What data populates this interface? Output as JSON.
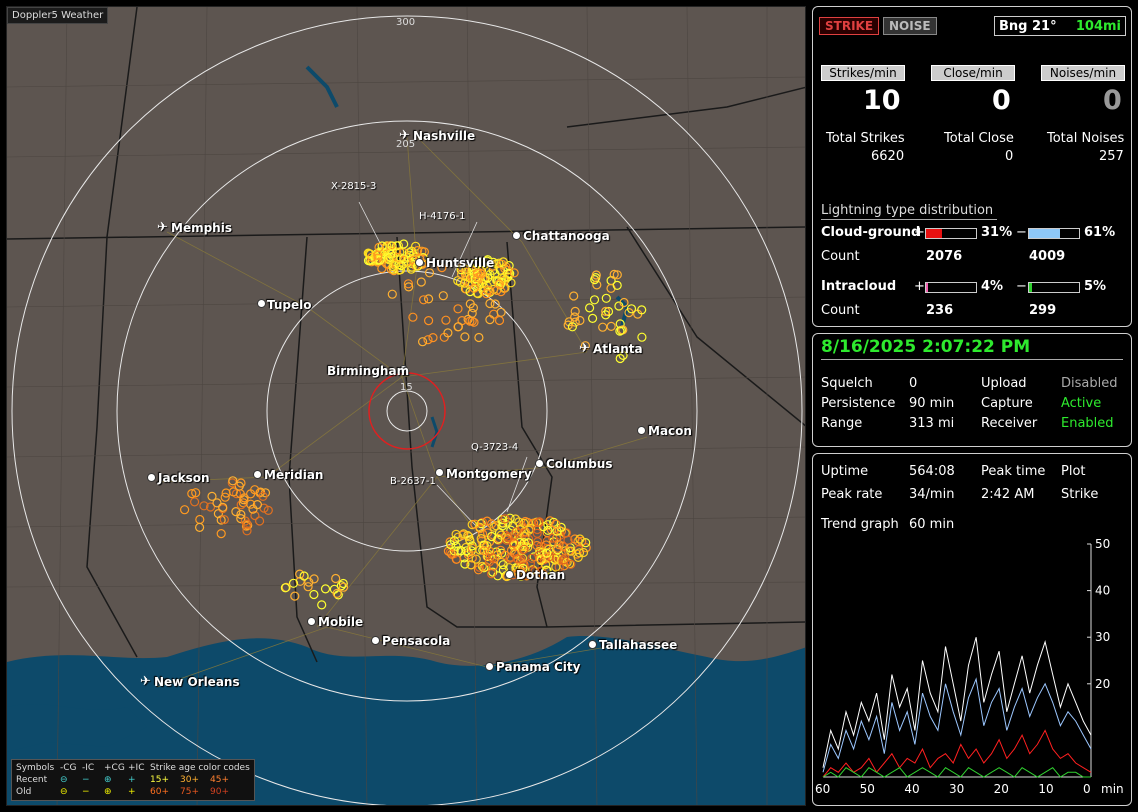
{
  "brand": "Doppler5 Weather",
  "range_labels": [
    "300",
    "205",
    "15"
  ],
  "cities": [
    {
      "name": "Nashville",
      "type": "plane"
    },
    {
      "name": "Memphis",
      "type": "plane"
    },
    {
      "name": "Chattanooga",
      "type": "dot"
    },
    {
      "name": "Huntsville",
      "type": "dot"
    },
    {
      "name": "Tupelo",
      "type": "dot"
    },
    {
      "name": "Atlanta",
      "type": "plane"
    },
    {
      "name": "Birmingham",
      "type": "dot"
    },
    {
      "name": "Macon",
      "type": "dot"
    },
    {
      "name": "Jackson",
      "type": "dot"
    },
    {
      "name": "Meridian",
      "type": "dot"
    },
    {
      "name": "Montgomery",
      "type": "dot"
    },
    {
      "name": "Columbus",
      "type": "dot"
    },
    {
      "name": "Dothan",
      "type": "dot"
    },
    {
      "name": "Mobile",
      "type": "dot"
    },
    {
      "name": "Pensacola",
      "type": "dot"
    },
    {
      "name": "Tallahassee",
      "type": "dot"
    },
    {
      "name": "Panama City",
      "type": "dot"
    },
    {
      "name": "New Orleans",
      "type": "plane"
    }
  ],
  "strike_tags": [
    "X-2815-3",
    "H-4176-1",
    "Q-3723-4",
    "B-2637-1"
  ],
  "legend": {
    "symbols_label": "Symbols",
    "cols": [
      "-CG",
      "-IC",
      "+CG",
      "+IC"
    ],
    "age_label": "Strike age color codes",
    "recent_label": "Recent",
    "old_label": "Old",
    "recent_ages": [
      "15+",
      "30+",
      "45+"
    ],
    "old_ages": [
      "60+",
      "75+",
      "90+"
    ],
    "recent_glyphs": [
      "⊖",
      "−",
      "⊕",
      "+"
    ],
    "old_glyphs": [
      "⊖",
      "−",
      "⊕",
      "+"
    ]
  },
  "header": {
    "strike": "STRIKE",
    "noise": "NOISE",
    "bearing": "Bng 21°",
    "distance": "104mi"
  },
  "rates": {
    "strikes_label": "Strikes/min",
    "close_label": "Close/min",
    "noises_label": "Noises/min",
    "strikes": "10",
    "close": "0",
    "noises": "0"
  },
  "totals": {
    "strikes_label": "Total Strikes",
    "close_label": "Total Close",
    "noises_label": "Total Noises",
    "strikes": "6620",
    "close": "0",
    "noises": "257"
  },
  "distribution": {
    "title": "Lightning type distribution",
    "cg_label": "Cloud-ground",
    "ic_label": "Intracloud",
    "count_label": "Count",
    "cg_pos_pct": "31%",
    "cg_neg_pct": "61%",
    "ic_pos_pct": "4%",
    "ic_neg_pct": "5%",
    "cg_pos_count": "2076",
    "cg_neg_count": "4009",
    "ic_pos_count": "236",
    "ic_neg_count": "299",
    "cg_pos_frac": 0.31,
    "cg_neg_frac": 0.61,
    "ic_pos_frac": 0.04,
    "ic_neg_frac": 0.05
  },
  "status": {
    "datetime": "8/16/2025 2:07:22 PM",
    "squelch_label": "Squelch",
    "squelch": "0",
    "persistence_label": "Persistence",
    "persistence": "90 min",
    "range_label": "Range",
    "range": "313 mi",
    "upload_label": "Upload",
    "upload": "Disabled",
    "capture_label": "Capture",
    "capture": "Active",
    "receiver_label": "Receiver",
    "receiver": "Enabled"
  },
  "stats": {
    "uptime_label": "Uptime",
    "uptime": "564:08",
    "peak_time_label": "Peak time",
    "peak_time": "2:42 AM",
    "plot_label": "Plot",
    "plot": "Strike",
    "peak_rate_label": "Peak rate",
    "peak_rate": "34/min",
    "trend_label": "Trend graph",
    "trend": "60 min"
  },
  "chart_data": {
    "type": "line",
    "xlabel": "min",
    "x_ticks": [
      "60",
      "50",
      "40",
      "30",
      "20",
      "10",
      "0"
    ],
    "y_ticks": [
      "50",
      "40",
      "30",
      "20"
    ],
    "ylim": [
      0,
      50
    ],
    "xlim": [
      60,
      0
    ],
    "series": [
      {
        "color": "#ffffff",
        "values": [
          2,
          10,
          6,
          14,
          9,
          16,
          12,
          18,
          8,
          22,
          15,
          19,
          10,
          25,
          18,
          14,
          28,
          20,
          12,
          24,
          30,
          16,
          22,
          27,
          14,
          20,
          26,
          18,
          24,
          29,
          22,
          15,
          20,
          16,
          12,
          9
        ]
      },
      {
        "color": "#9cc7ff",
        "values": [
          1,
          7,
          4,
          10,
          6,
          12,
          8,
          13,
          5,
          16,
          10,
          14,
          7,
          18,
          13,
          10,
          20,
          14,
          9,
          17,
          21,
          11,
          16,
          19,
          10,
          15,
          19,
          13,
          17,
          20,
          16,
          11,
          14,
          12,
          9,
          6
        ]
      },
      {
        "color": "#ff2020",
        "values": [
          0,
          2,
          1,
          3,
          1,
          2,
          4,
          1,
          3,
          5,
          2,
          4,
          3,
          6,
          2,
          4,
          5,
          3,
          7,
          4,
          6,
          3,
          5,
          8,
          4,
          6,
          9,
          5,
          7,
          10,
          6,
          4,
          5,
          3,
          2,
          1
        ]
      },
      {
        "color": "#30d030",
        "values": [
          0,
          1,
          0,
          2,
          1,
          0,
          2,
          1,
          0,
          1,
          2,
          0,
          1,
          2,
          1,
          0,
          2,
          1,
          0,
          2,
          1,
          0,
          1,
          2,
          1,
          0,
          2,
          1,
          0,
          1,
          2,
          0,
          1,
          1,
          0,
          0
        ]
      }
    ]
  }
}
